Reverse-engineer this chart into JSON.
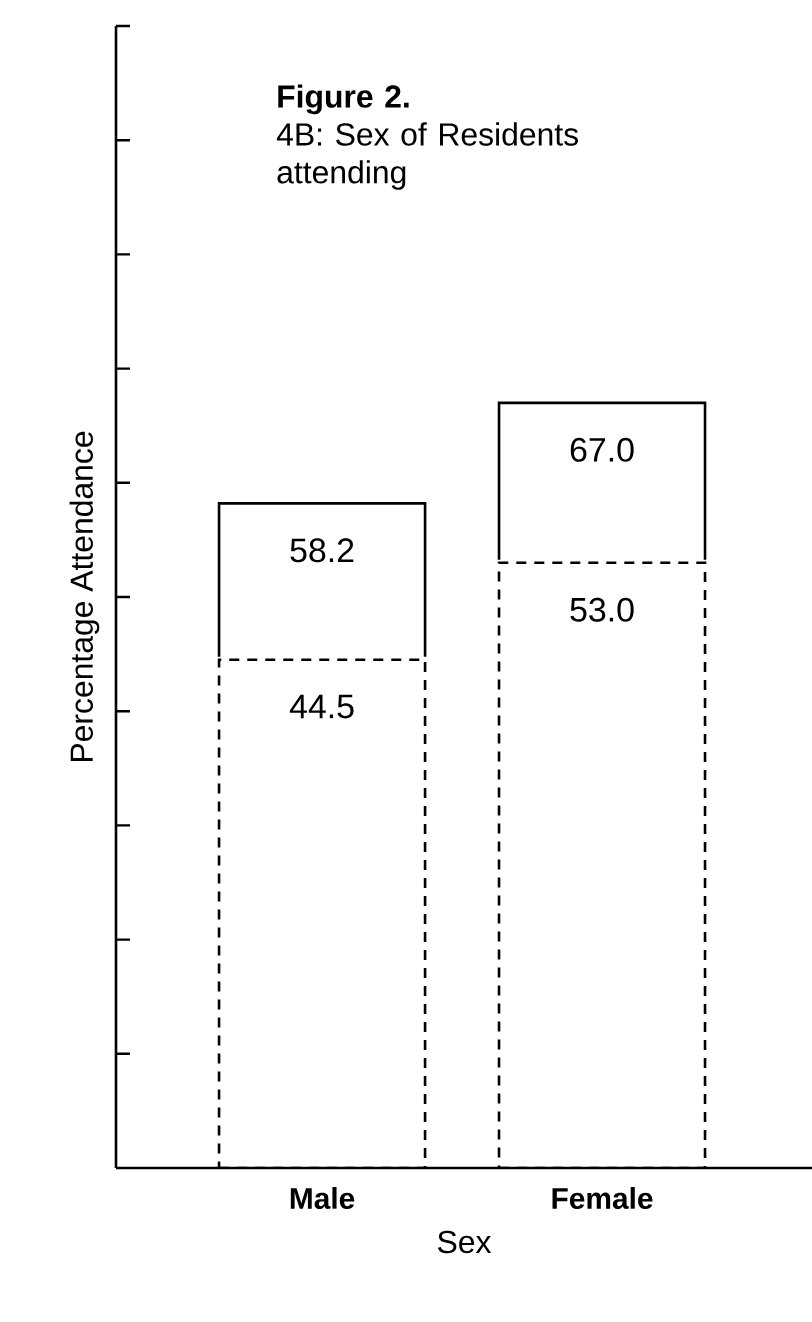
{
  "chart_data": {
    "type": "bar",
    "title": "Figure 2.",
    "subtitle": "4B: Sex of Residents attending",
    "xlabel": "Sex",
    "ylabel": "Percentage Attendance",
    "categories": [
      "Male",
      "Female"
    ],
    "stacked": true,
    "series": [
      {
        "color": "#ffffff",
        "line_style": "dashed",
        "values": [
          44.5,
          53.0
        ],
        "value_labels": [
          "44.5",
          "53.0"
        ]
      },
      {
        "color": "#ffffff",
        "line_style": "solid",
        "values": [
          13.7,
          14.0
        ]
      }
    ],
    "totals": [
      "58.2",
      "67.0"
    ],
    "tick_labels": "x",
    "grid": false
  }
}
